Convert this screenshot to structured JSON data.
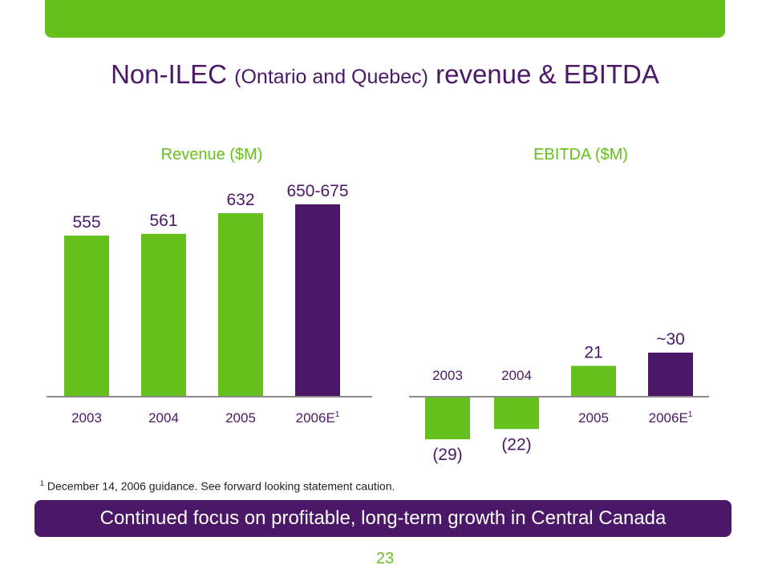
{
  "title": {
    "part1": "Non-ILEC ",
    "part2": "(Ontario and Quebec)",
    "part3": " revenue & EBITDA"
  },
  "colors": {
    "green": "#66c01c",
    "purple": "#4b1868",
    "label": "#4b1868"
  },
  "chart_data": [
    {
      "type": "bar",
      "title": "Revenue ($M)",
      "categories": [
        "2003",
        "2004",
        "2005",
        "2006E"
      ],
      "values": [
        555,
        561,
        632,
        662.5
      ],
      "value_labels": [
        "555",
        "561",
        "632",
        "650-675"
      ],
      "superscripts": [
        "",
        "",
        "",
        "1"
      ],
      "bar_colors": [
        "green",
        "green",
        "green",
        "purple"
      ],
      "ylim": [
        0,
        700
      ]
    },
    {
      "type": "bar",
      "title": "EBITDA ($M)",
      "categories": [
        "2003",
        "2004",
        "2005",
        "2006E"
      ],
      "values": [
        -29,
        -22,
        21,
        30
      ],
      "value_labels": [
        "(29)",
        "(22)",
        "21",
        "~30"
      ],
      "superscripts": [
        "",
        "",
        "",
        "1"
      ],
      "bar_colors": [
        "green",
        "green",
        "green",
        "purple"
      ],
      "ylim": [
        -29,
        30
      ]
    }
  ],
  "footnote": {
    "marker": "1",
    "text": " December 14, 2006 guidance.  See forward looking statement caution."
  },
  "banner": "Continued focus on profitable, long-term growth in Central Canada",
  "page_number": "23"
}
